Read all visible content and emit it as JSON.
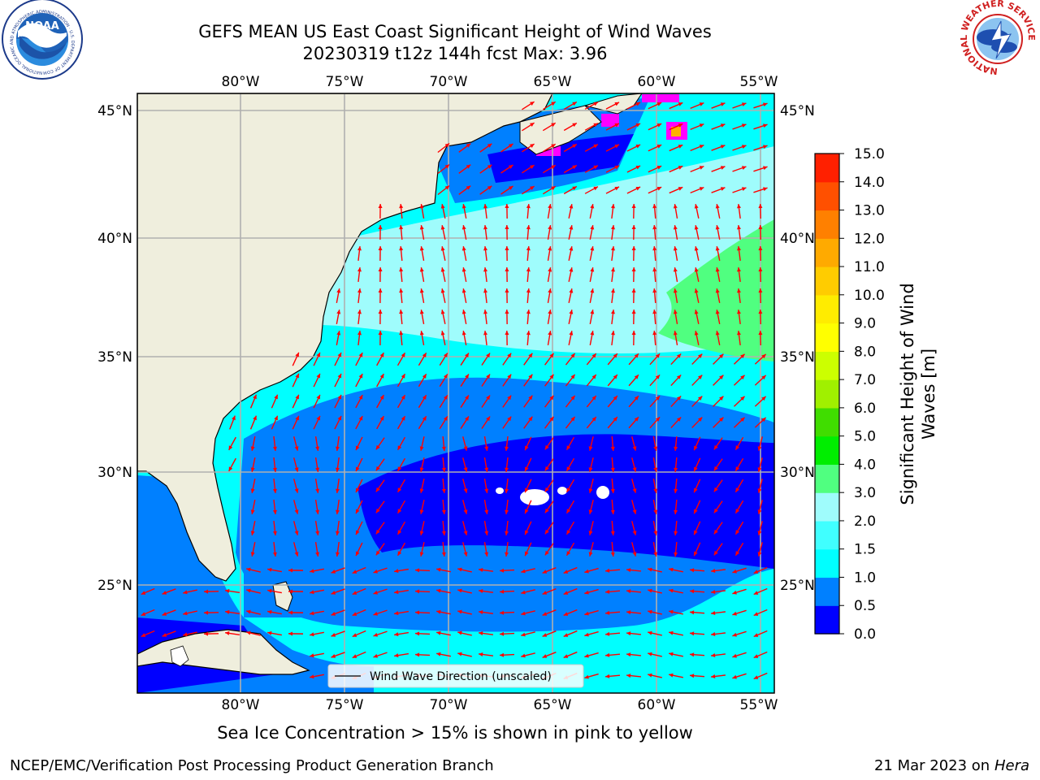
{
  "header": {
    "title_line1": "GEFS MEAN US East Coast Significant Height of Wind Waves",
    "title_line2": "20230319 t12z 144h fcst   Max: 3.96"
  },
  "logos": {
    "left": "NOAA",
    "left_ring_text": "NATIONAL OCEANIC AND ATMOSPHERIC ADMINISTRATION · U.S. DEPARTMENT OF COMMERCE",
    "right_ring_text": "NATIONAL WEATHER SERVICE"
  },
  "map": {
    "lon_labels": [
      "80°W",
      "75°W",
      "70°W",
      "65°W",
      "60°W",
      "55°W"
    ],
    "lat_labels": [
      "45°N",
      "40°N",
      "35°N",
      "30°N",
      "25°N"
    ],
    "legend_label": "Wind Wave Direction (unscaled)",
    "colors": {
      "land": "#efeedd",
      "grid": "#b0b0b0",
      "arrow": "#ff0000",
      "ice": "#ff00ff"
    }
  },
  "colorbar": {
    "label_line1": "Significant Height of Wind",
    "label_line2": "Waves [m]",
    "ticks": [
      "0.0",
      "0.5",
      "1.0",
      "1.5",
      "2.0",
      "3.0",
      "4.0",
      "5.0",
      "6.0",
      "7.0",
      "8.0",
      "9.0",
      "10.0",
      "11.0",
      "12.0",
      "13.0",
      "14.0",
      "15.0"
    ],
    "colors": [
      "#0000ff",
      "#0080ff",
      "#00ffff",
      "#40ffff",
      "#9ffcfc",
      "#50ff80",
      "#00ee00",
      "#40dd00",
      "#a0f000",
      "#ccff00",
      "#ffff00",
      "#ffec00",
      "#ffcc00",
      "#ffaa00",
      "#ff8000",
      "#ff5000",
      "#ff2000"
    ]
  },
  "caption": "Sea Ice Concentration > 15% is shown in pink to yellow",
  "footer": {
    "left": "NCEP/EMC/Verification Post Processing Product Generation Branch",
    "right_date": "21 Mar 2023 on",
    "right_host": "Hera"
  }
}
